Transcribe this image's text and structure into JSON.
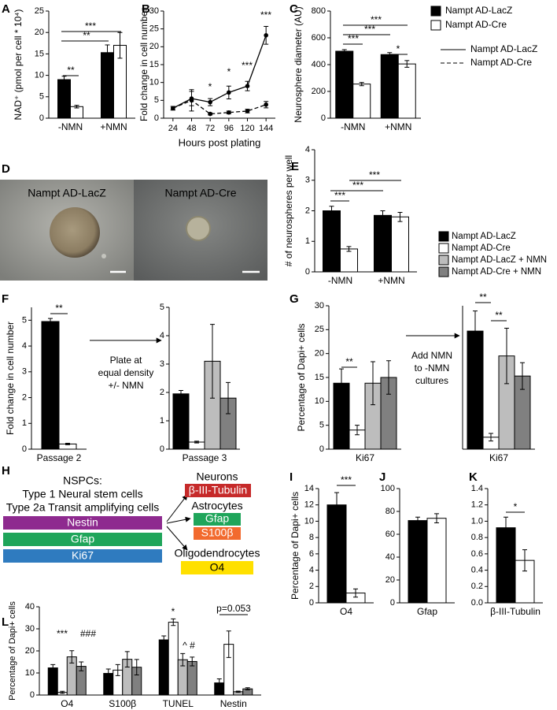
{
  "panel_labels": [
    "A",
    "B",
    "C",
    "D",
    "E",
    "F",
    "G",
    "H",
    "I",
    "J",
    "K",
    "L"
  ],
  "chart_data": [
    {
      "type": "bar",
      "ylabel": "NAD⁺ (pmol per cell * 10⁴)",
      "categories": [
        "-NMN",
        "+NMN"
      ],
      "series": [
        {
          "color": "#000000",
          "values": [
            9,
            15.3
          ],
          "errors": [
            0.8,
            1.8
          ]
        },
        {
          "color": "#ffffff",
          "values": [
            2.7,
            17
          ],
          "errors": [
            0.3,
            3
          ]
        }
      ],
      "ylim": [
        0,
        25
      ],
      "yticks": [
        0,
        5,
        10,
        15,
        20,
        25
      ],
      "annotations": [
        "**",
        "**",
        "***"
      ]
    },
    {
      "type": "line",
      "xlabel": "Hours post plating",
      "ylabel": "Fold change in cell number",
      "x": [
        24,
        48,
        72,
        96,
        120,
        144
      ],
      "series": [
        {
          "name": "Nampt AD-LacZ",
          "color": "#000000",
          "dash": false,
          "values": [
            2.8,
            5.5,
            4.5,
            7.2,
            9,
            23.2
          ],
          "errors": [
            0.5,
            2,
            1,
            1.8,
            1.3,
            2.5
          ]
        },
        {
          "name": "Nampt AD-Cre",
          "color": "#000000",
          "dash": true,
          "values": [
            2.8,
            5,
            1.2,
            1.6,
            2,
            3.8
          ],
          "errors": [
            0.5,
            3,
            0.3,
            0.4,
            0.5,
            0.9
          ]
        }
      ],
      "xlim": [
        12,
        156
      ],
      "xticks": [
        24,
        48,
        72,
        96,
        120,
        144
      ],
      "ylim": [
        0,
        30
      ],
      "yticks": [
        0,
        5,
        10,
        15,
        20,
        25,
        30
      ],
      "annotations": [
        "*",
        "*",
        "***",
        "***"
      ]
    },
    {
      "type": "bar",
      "ylabel": "Neurosphere diameter (AU)",
      "categories": [
        "-NMN",
        "+NMN"
      ],
      "series": [
        {
          "name": "Nampt AD-LacZ",
          "color": "#000000",
          "values": [
            500,
            475
          ],
          "errors": [
            12,
            15
          ]
        },
        {
          "name": "Nampt AD-Cre",
          "color": "#ffffff",
          "values": [
            255,
            405
          ],
          "errors": [
            12,
            25
          ]
        }
      ],
      "ylim": [
        0,
        800
      ],
      "yticks": [
        0,
        200,
        400,
        600,
        800
      ],
      "annotations": [
        "***",
        "***",
        "***",
        "*"
      ]
    },
    {
      "type": "bar",
      "ylabel": "# of neurospheres per well",
      "categories": [
        "-NMN",
        "+NMN"
      ],
      "series": [
        {
          "color": "#000000",
          "values": [
            2.0,
            1.85
          ],
          "errors": [
            0.15,
            0.15
          ]
        },
        {
          "color": "#ffffff",
          "values": [
            0.75,
            1.8
          ],
          "errors": [
            0.08,
            0.15
          ]
        }
      ],
      "ylim": [
        0,
        4
      ],
      "yticks": [
        0,
        1,
        2,
        3,
        4
      ],
      "annotations": [
        "***",
        "***",
        "***"
      ]
    },
    {
      "type": "bar",
      "ylabel": "Fold change in cell number",
      "categories": [
        "Passage 2"
      ],
      "series": [
        {
          "color": "#000000",
          "values": [
            4.95
          ],
          "errors": [
            0.12
          ]
        },
        {
          "color": "#ffffff",
          "values": [
            0.2
          ],
          "errors": [
            0.03
          ]
        }
      ],
      "ylim": [
        0,
        5.5
      ],
      "yticks": [
        0,
        1,
        2,
        3,
        4,
        5
      ],
      "annotations": [
        "**"
      ]
    },
    {
      "type": "bar",
      "categories": [
        "Passage 3"
      ],
      "series": [
        {
          "color": "#000000",
          "values": [
            1.95
          ],
          "errors": [
            0.12
          ]
        },
        {
          "color": "#ffffff",
          "values": [
            0.25
          ],
          "errors": [
            0.03
          ]
        },
        {
          "color": "#bdbdbd",
          "values": [
            3.1
          ],
          "errors": [
            1.3
          ]
        },
        {
          "color": "#808080",
          "values": [
            1.8
          ],
          "errors": [
            0.55
          ]
        }
      ],
      "ylim": [
        0,
        5
      ],
      "yticks": [
        0,
        1,
        2,
        3,
        4,
        5
      ]
    },
    {
      "type": "bar",
      "ylabel": "Percentage of Dapi+ cells",
      "categories": [
        "Ki67"
      ],
      "series": [
        {
          "name": "Nampt AD-LacZ",
          "color": "#000000",
          "values": [
            13.8
          ],
          "errors": [
            3
          ]
        },
        {
          "name": "Nampt AD-Cre",
          "color": "#ffffff",
          "values": [
            4
          ],
          "errors": [
            1
          ]
        },
        {
          "name": "Nampt AD-LacZ + NMN",
          "color": "#bdbdbd",
          "values": [
            13.8
          ],
          "errors": [
            4.5
          ]
        },
        {
          "name": "Nampt AD-Cre + NMN",
          "color": "#808080",
          "values": [
            15
          ],
          "errors": [
            3.5
          ]
        }
      ],
      "ylim": [
        0,
        30
      ],
      "yticks": [
        0,
        5,
        10,
        15,
        20,
        25,
        30
      ],
      "annotations": [
        "**"
      ]
    },
    {
      "type": "bar",
      "categories": [
        "Ki67"
      ],
      "series": [
        {
          "color": "#000000",
          "values": [
            24.7
          ],
          "errors": [
            4.2
          ]
        },
        {
          "color": "#ffffff",
          "values": [
            2.5
          ],
          "errors": [
            0.8
          ]
        },
        {
          "color": "#bdbdbd",
          "values": [
            19.5
          ],
          "errors": [
            5.8
          ]
        },
        {
          "color": "#808080",
          "values": [
            15.3
          ],
          "errors": [
            2.8
          ]
        }
      ],
      "ylim": [
        0,
        30
      ],
      "annotations": [
        "**",
        "**"
      ]
    },
    {
      "type": "bar",
      "ylabel": "Percentage of Dapi+ cells",
      "categories": [
        "O4"
      ],
      "series": [
        {
          "color": "#000000",
          "values": [
            12
          ],
          "errors": [
            1.5
          ]
        },
        {
          "color": "#ffffff",
          "values": [
            1.2
          ],
          "errors": [
            0.5
          ]
        }
      ],
      "ylim": [
        0,
        14
      ],
      "yticks": [
        0,
        2,
        4,
        6,
        8,
        10,
        12,
        14
      ],
      "annotations": [
        "***"
      ]
    },
    {
      "type": "bar",
      "categories": [
        "Gfap"
      ],
      "series": [
        {
          "color": "#000000",
          "values": [
            72
          ],
          "errors": [
            3
          ]
        },
        {
          "color": "#ffffff",
          "values": [
            74
          ],
          "errors": [
            4
          ]
        }
      ],
      "ylim": [
        0,
        100
      ],
      "yticks": [
        0,
        20,
        40,
        60,
        80,
        100
      ]
    },
    {
      "type": "bar",
      "categories": [
        "β-III-Tubulin"
      ],
      "series": [
        {
          "color": "#000000",
          "values": [
            0.92
          ],
          "errors": [
            0.13
          ]
        },
        {
          "color": "#ffffff",
          "values": [
            0.52
          ],
          "errors": [
            0.13
          ]
        }
      ],
      "ylim": [
        0,
        1.4
      ],
      "yticks": [
        {
          "value": 0,
          "label": "0.0"
        },
        0.2,
        0.4,
        0.6,
        0.8,
        {
          "value": 1,
          "label": "1.0"
        },
        1.2,
        1.4
      ],
      "annotations": [
        "*"
      ]
    },
    {
      "type": "bar",
      "ylabel": "Percentage of Dapi+ cells",
      "categories": [
        "O4",
        "S100β",
        "TUNEL",
        "Nestin"
      ],
      "series": [
        {
          "color": "#000000",
          "values": [
            12.3,
            9.8,
            25,
            5.5
          ],
          "errors": [
            1.5,
            2,
            1.8,
            1.8
          ]
        },
        {
          "color": "#ffffff",
          "values": [
            1.2,
            11.3,
            33,
            23
          ],
          "errors": [
            0.5,
            2.5,
            1.5,
            6
          ]
        },
        {
          "color": "#bdbdbd",
          "values": [
            17.3,
            16.2,
            16,
            1.5
          ],
          "errors": [
            2.8,
            3.5,
            2.8,
            0.3
          ]
        },
        {
          "color": "#808080",
          "values": [
            13,
            12.6,
            15.2,
            2.8
          ],
          "errors": [
            2,
            3.5,
            2,
            0.5
          ]
        }
      ],
      "ylim": [
        0,
        40
      ],
      "yticks": [
        0,
        10,
        20,
        30,
        40
      ],
      "annotations": [
        "***",
        "###",
        "*",
        "^ #",
        "p=0.053"
      ]
    }
  ],
  "panel_d": {
    "left_label": "Nampt AD-LacZ",
    "right_label": "Nampt AD-Cre"
  },
  "panel_f_note": [
    "Plate at",
    "equal density",
    "+/- NMN"
  ],
  "panel_g_note": [
    "Add NMN",
    "to -NMN",
    "cultures"
  ],
  "panel_h": {
    "title_lines": [
      "NSPCs:",
      "Type 1 Neural stem cells",
      "Type 2a Transit amplifying cells"
    ],
    "markers": [
      "Nestin",
      "Gfap",
      "Ki67"
    ],
    "neurons": {
      "label": "Neurons",
      "marker": "β-III-Tubulin"
    },
    "astrocytes": {
      "label": "Astrocytes",
      "markers": [
        "Gfap",
        "S100β"
      ]
    },
    "oligodendrocytes": {
      "label": "Oligodendrocytes",
      "marker": "O4"
    }
  }
}
